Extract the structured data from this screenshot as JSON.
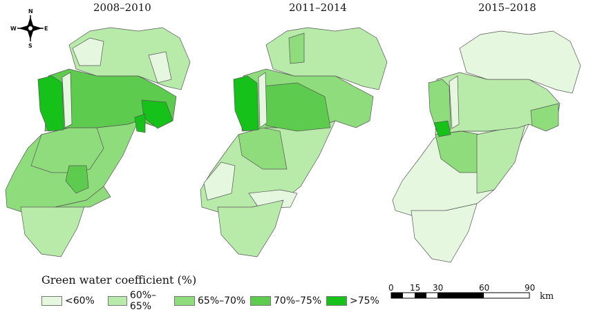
{
  "panels": [
    {
      "title": "2008–2010"
    },
    {
      "title": "2011–2014"
    },
    {
      "title": "2015–2018"
    }
  ],
  "compass": {
    "n": "N",
    "s": "S",
    "e": "E",
    "w": "W"
  },
  "legend": {
    "title": "Green water coefficient (%)",
    "items": [
      {
        "label": "<60%",
        "color": "#e6f7e0"
      },
      {
        "label": "60%–65%",
        "color": "#b8eaa9"
      },
      {
        "label": "65%–70%",
        "color": "#8fdc7c"
      },
      {
        "label": "70%–75%",
        "color": "#5dcb4d"
      },
      {
        "label": ">75%",
        "color": "#16c21a"
      }
    ]
  },
  "scale_bar": {
    "ticks": [
      "0",
      "15",
      "30",
      "60",
      "90"
    ],
    "unit": "km"
  }
}
